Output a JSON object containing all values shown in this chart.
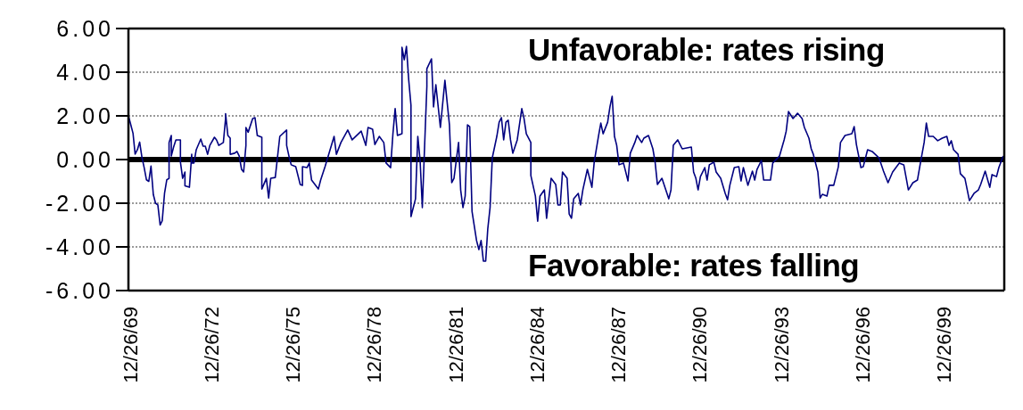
{
  "chart_data": {
    "type": "line",
    "annotations": [
      "Unfavorable: rates rising",
      "Favorable: rates falling"
    ],
    "x": [
      "1969-12",
      "1970-01",
      "1970-02",
      "1970-03",
      "1970-04",
      "1970-05",
      "1970-06",
      "1970-07",
      "1970-08",
      "1970-09",
      "1970-10",
      "1970-11",
      "1970-12",
      "1971-01",
      "1971-02",
      "1971-03",
      "1971-04",
      "1971-05",
      "1971-06",
      "1971-06",
      "1971-07",
      "1971-07",
      "1971-08",
      "1971-09",
      "1971-11",
      "1971-11",
      "1971-12",
      "1972-01",
      "1972-01",
      "1972-03",
      "1972-04",
      "1972-04",
      "1972-05",
      "1972-06",
      "1972-08",
      "1972-09",
      "1972-10",
      "1972-11",
      "1972-12",
      "1973-02",
      "1973-03",
      "1973-04",
      "1973-06",
      "1973-07",
      "1973-07",
      "1973-08",
      "1973-09",
      "1973-09",
      "1973-11",
      "1973-12",
      "1974-01",
      "1974-02",
      "1974-03",
      "1974-04",
      "1974-04",
      "1974-05",
      "1974-07",
      "1974-08",
      "1974-09",
      "1974-11",
      "1974-11",
      "1974-11",
      "1975-01",
      "1975-02",
      "1975-03",
      "1975-05",
      "1975-07",
      "1975-10",
      "1975-10",
      "1975-11",
      "1975-12",
      "1976-02",
      "1976-04",
      "1976-05",
      "1976-05",
      "1976-07",
      "1976-08",
      "1976-09",
      "1976-12",
      "1977-01",
      "1977-03",
      "1977-05",
      "1977-07",
      "1977-08",
      "1977-10",
      "1978-01",
      "1978-03",
      "1978-07",
      "1978-09",
      "1978-10",
      "1978-12",
      "1979-01",
      "1979-03",
      "1979-05",
      "1979-06",
      "1979-08",
      "1979-09",
      "1979-10",
      "1979-11",
      "1980-01",
      "1980-01",
      "1980-02",
      "1980-03",
      "1980-04",
      "1980-05",
      "1980-05",
      "1980-07",
      "1980-08",
      "1980-09",
      "1980-10",
      "1980-11",
      "1980-12",
      "1980-12",
      "1981-02",
      "1981-03",
      "1981-04",
      "1981-06",
      "1981-08",
      "1981-10",
      "1981-11",
      "1981-12",
      "1982-02",
      "1982-03",
      "1982-04",
      "1982-05",
      "1982-06",
      "1982-07",
      "1982-08",
      "1982-10",
      "1982-11",
      "1982-12",
      "1983-01",
      "1983-02",
      "1983-03",
      "1983-04",
      "1983-05",
      "1983-07",
      "1983-08",
      "1983-09",
      "1983-10",
      "1983-11",
      "1983-12",
      "1984-01",
      "1984-02",
      "1984-04",
      "1984-06",
      "1984-07",
      "1984-08",
      "1984-10",
      "1984-10",
      "1984-12",
      "1985-01",
      "1985-02",
      "1985-04",
      "1985-05",
      "1985-07",
      "1985-09",
      "1985-10",
      "1985-11",
      "1985-12",
      "1986-02",
      "1986-03",
      "1986-04",
      "1986-05",
      "1986-07",
      "1986-08",
      "1986-09",
      "1986-11",
      "1987-01",
      "1987-02",
      "1987-04",
      "1987-05",
      "1987-06",
      "1987-08",
      "1987-09",
      "1987-10",
      "1987-11",
      "1987-12",
      "1988-01",
      "1988-03",
      "1988-05",
      "1988-06",
      "1988-08",
      "1988-09",
      "1988-11",
      "1988-12",
      "1989-02",
      "1989-04",
      "1989-05",
      "1989-06",
      "1989-08",
      "1989-11",
      "1989-12",
      "1990-01",
      "1990-03",
      "1990-05",
      "1990-09",
      "1990-10",
      "1990-11",
      "1990-12",
      "1991-01",
      "1991-03",
      "1991-04",
      "1991-05",
      "1991-07",
      "1991-08",
      "1991-10",
      "1991-12",
      "1992-01",
      "1992-02",
      "1992-04",
      "1992-06",
      "1992-07",
      "1992-08",
      "1992-10",
      "1992-12",
      "1993-01",
      "1993-02",
      "1993-04",
      "1993-05",
      "1993-08",
      "1993-09",
      "1993-12",
      "1994-02",
      "1994-03",
      "1994-04",
      "1994-06",
      "1994-08",
      "1994-10",
      "1994-11",
      "1995-01",
      "1995-02",
      "1995-03",
      "1995-05",
      "1995-06",
      "1995-07",
      "1995-09",
      "1995-10",
      "1995-12",
      "1996-02",
      "1996-03",
      "1996-05",
      "1996-08",
      "1996-09",
      "1996-10",
      "1996-11",
      "1996-12",
      "1997-01",
      "1997-03",
      "1997-05",
      "1997-08",
      "1997-10",
      "1997-12",
      "1998-02",
      "1998-05",
      "1998-07",
      "1998-09",
      "1998-11",
      "1999-01",
      "1999-02",
      "1999-04",
      "1999-05",
      "1999-06",
      "1999-08",
      "1999-10",
      "1999-12",
      "2000-02",
      "2000-03",
      "2000-04",
      "2000-05",
      "2000-07",
      "2000-08",
      "2000-10",
      "2000-12",
      "2001-02",
      "2001-04",
      "2001-05",
      "2001-07",
      "2001-09",
      "2001-10",
      "2001-12",
      "2002-01",
      "2002-03"
    ],
    "series": [
      {
        "color": "#000080",
        "values": [
          2.0,
          1.6,
          1.2,
          0.25,
          0.45,
          0.8,
          0.1,
          -0.37,
          -0.93,
          -1.0,
          -0.3,
          -1.6,
          -2.0,
          -2.08,
          -3.0,
          -2.8,
          -1.55,
          -0.93,
          -0.86,
          0.78,
          1.1,
          0.16,
          0.57,
          0.9,
          0.9,
          -0.12,
          -0.86,
          -0.57,
          -1.2,
          -1.27,
          0.24,
          -0.16,
          -0.16,
          0.45,
          0.94,
          0.61,
          0.61,
          0.24,
          0.65,
          1.02,
          0.9,
          0.65,
          0.78,
          1.88,
          2.1,
          1.1,
          0.98,
          0.24,
          0.29,
          0.37,
          0.16,
          -0.45,
          -0.57,
          0.65,
          1.47,
          1.25,
          1.88,
          1.92,
          1.1,
          1.02,
          -0.33,
          -1.35,
          -0.86,
          -1.76,
          -0.86,
          -0.82,
          1.06,
          1.35,
          0.65,
          0.16,
          -0.24,
          -0.33,
          -1.14,
          -1.18,
          -0.33,
          -0.37,
          -0.16,
          -0.94,
          -1.35,
          -0.94,
          -0.33,
          0.37,
          1.06,
          0.24,
          0.78,
          1.35,
          0.9,
          1.3,
          0.65,
          1.47,
          1.39,
          0.69,
          1.06,
          0.78,
          -0.16,
          -0.37,
          1.18,
          2.33,
          1.1,
          1.18,
          5.14,
          4.57,
          5.18,
          3.63,
          2.49,
          -2.61,
          -1.8,
          1.06,
          -0.04,
          -2.2,
          0.65,
          3.35,
          4.16,
          4.61,
          2.41,
          3.43,
          1.47,
          3.63,
          1.59,
          -1.06,
          -0.86,
          0.78,
          -1.39,
          -2.2,
          -1.67,
          1.59,
          1.51,
          -2.37,
          -3.71,
          -4.12,
          -3.71,
          -4.65,
          -4.65,
          -3.18,
          -2.2,
          0.08,
          1.06,
          1.71,
          1.92,
          0.9,
          1.71,
          1.8,
          0.9,
          0.29,
          0.9,
          2.33,
          1.88,
          1.18,
          0.78,
          -0.73,
          -1.67,
          -2.82,
          -1.67,
          -1.39,
          -2.69,
          -0.86,
          -1.14,
          -2.08,
          -2.08,
          -0.57,
          -0.86,
          -2.49,
          -2.69,
          -1.8,
          -1.55,
          -2.08,
          -1.39,
          -0.45,
          -1.27,
          -0.12,
          1.1,
          1.67,
          1.18,
          1.71,
          2.41,
          2.9,
          1.06,
          0.65,
          -0.24,
          -0.16,
          -0.98,
          0.29,
          0.78,
          1.1,
          0.78,
          0.98,
          1.1,
          0.49,
          -0.12,
          -1.14,
          -0.86,
          -1.8,
          -1.39,
          0.65,
          0.9,
          0.49,
          0.57,
          -0.57,
          -0.86,
          -1.39,
          -0.78,
          -0.37,
          -0.94,
          -0.24,
          -0.12,
          -0.57,
          -0.86,
          -1.55,
          -1.84,
          -1.18,
          -0.37,
          -0.33,
          -0.98,
          -0.37,
          -1.18,
          -0.53,
          -0.94,
          -0.45,
          -0.04,
          -0.94,
          -0.94,
          -0.16,
          0.16,
          0.9,
          1.3,
          2.2,
          1.88,
          2.12,
          1.88,
          1.47,
          0.98,
          0.49,
          0.24,
          -0.57,
          -1.76,
          -1.59,
          -1.67,
          -1.18,
          -1.18,
          -0.33,
          0.78,
          1.1,
          1.18,
          1.51,
          0.69,
          0.16,
          -0.37,
          -0.33,
          0.45,
          0.37,
          0.08,
          -0.53,
          -1.06,
          -0.57,
          -0.16,
          -0.24,
          -1.39,
          -1.06,
          -0.94,
          -0.33,
          0.78,
          1.67,
          1.06,
          1.06,
          0.86,
          0.98,
          1.06,
          0.65,
          0.86,
          0.45,
          0.24,
          -0.65,
          -0.86,
          -1.88,
          -1.55,
          -1.39,
          -1.14,
          -0.53,
          -1.27,
          -0.69,
          -0.78,
          -0.37,
          0.16
        ]
      }
    ],
    "xlim": [
      "1969-12-01",
      "2002-03-15"
    ],
    "xticks": [
      {
        "value": "1969-12-26",
        "label": "12/26/69"
      },
      {
        "value": "1972-12-26",
        "label": "12/26/72"
      },
      {
        "value": "1975-12-26",
        "label": "12/26/75"
      },
      {
        "value": "1978-12-26",
        "label": "12/26/78"
      },
      {
        "value": "1981-12-26",
        "label": "12/26/81"
      },
      {
        "value": "1984-12-26",
        "label": "12/26/84"
      },
      {
        "value": "1987-12-26",
        "label": "12/26/87"
      },
      {
        "value": "1990-12-26",
        "label": "12/26/90"
      },
      {
        "value": "1993-12-26",
        "label": "12/26/93"
      },
      {
        "value": "1996-12-26",
        "label": "12/26/96"
      },
      {
        "value": "1999-12-26",
        "label": "12/26/99"
      }
    ],
    "ylim": [
      -6,
      6
    ],
    "yticks": [
      {
        "value": -6,
        "label": "-6.00"
      },
      {
        "value": -4,
        "label": "-4.00"
      },
      {
        "value": -2,
        "label": "-2.00"
      },
      {
        "value": 0,
        "label": "0.00"
      },
      {
        "value": 2,
        "label": "2.00"
      },
      {
        "value": 4,
        "label": "4.00"
      },
      {
        "value": 6,
        "label": "6.00"
      }
    ],
    "grid": "y",
    "ref_lines": [
      {
        "axis": "y",
        "value": 0,
        "color": "#000000"
      }
    ],
    "legend": false,
    "marker": "none",
    "line_style": "solid"
  }
}
